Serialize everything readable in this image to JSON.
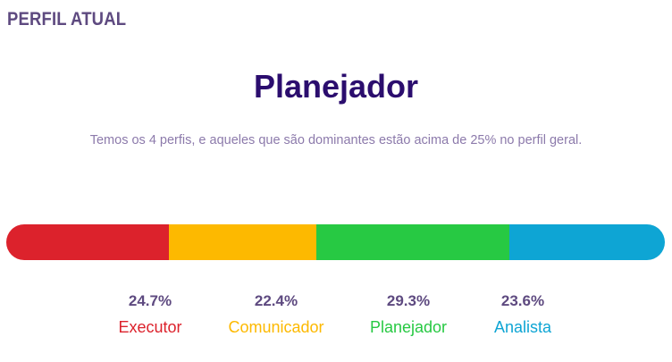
{
  "header": {
    "section_title": "PERFIL ATUAL"
  },
  "profile": {
    "name": "Planejador",
    "description": "Temos os 4 perfis, e aqueles que são dominantes estão acima de 25% no perfil geral."
  },
  "profiles": [
    {
      "label": "Executor",
      "percent": 24.7,
      "percent_text": "24.7%",
      "color": "#dc222c"
    },
    {
      "label": "Comunicador",
      "percent": 22.4,
      "percent_text": "22.4%",
      "color": "#fdb900"
    },
    {
      "label": "Planejador",
      "percent": 29.3,
      "percent_text": "29.3%",
      "color": "#27c943"
    },
    {
      "label": "Analista",
      "percent": 23.6,
      "percent_text": "23.6%",
      "color": "#0ea5d4"
    }
  ]
}
